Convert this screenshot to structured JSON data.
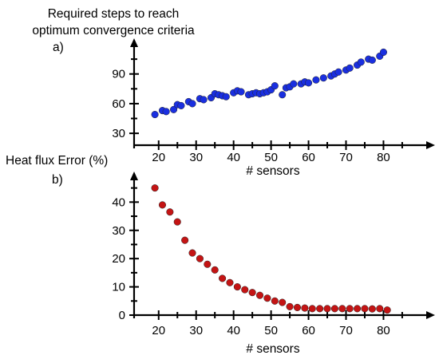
{
  "chart_data": [
    {
      "panel_label": "a)",
      "type": "scatter",
      "title_lines": [
        "Required steps to reach",
        "optimum convergence criteria"
      ],
      "xlabel": "# sensors",
      "ylabel": "",
      "xlim": [
        16,
        88
      ],
      "ylim": [
        18,
        118
      ],
      "xticks": [
        20,
        30,
        40,
        50,
        60,
        70,
        80
      ],
      "yticks": [
        30,
        60,
        90
      ],
      "marker_color": "#1a2fe0",
      "x": [
        19,
        21,
        22,
        24,
        25,
        26,
        28,
        29,
        31,
        32,
        34,
        35,
        36,
        37,
        38,
        40,
        41,
        42,
        44,
        45,
        46,
        47,
        48,
        49,
        50,
        51,
        53,
        54,
        55,
        56,
        58,
        59,
        60,
        62,
        64,
        66,
        67,
        68,
        70,
        71,
        73,
        74,
        76,
        77,
        79,
        80
      ],
      "y": [
        49,
        53,
        52,
        54,
        59,
        58,
        62,
        60,
        65,
        64,
        66,
        70,
        69,
        68,
        67,
        71,
        73,
        72,
        69,
        70,
        71,
        70,
        71,
        72,
        74,
        78,
        69,
        76,
        77,
        80,
        80,
        82,
        81,
        84,
        86,
        88,
        90,
        92,
        94,
        96,
        99,
        102,
        105,
        104,
        108,
        112
      ]
    },
    {
      "panel_label": "b)",
      "type": "scatter",
      "title_lines": [
        "Heat flux Error (%)"
      ],
      "xlabel": "# sensors",
      "ylabel": "",
      "xlim": [
        16,
        88
      ],
      "ylim": [
        0,
        48
      ],
      "xticks": [
        20,
        30,
        40,
        50,
        60,
        70,
        80
      ],
      "yticks": [
        0,
        10,
        20,
        30,
        40
      ],
      "marker_color": "#c41414",
      "x": [
        19,
        21,
        23,
        25,
        27,
        29,
        31,
        33,
        35,
        37,
        39,
        41,
        43,
        45,
        47,
        49,
        51,
        53,
        55,
        57,
        59,
        61,
        63,
        65,
        67,
        69,
        71,
        73,
        75,
        77,
        79,
        81
      ],
      "y": [
        45,
        39,
        36.5,
        33,
        26.5,
        22,
        20,
        18,
        16,
        13,
        11.5,
        10,
        9,
        8,
        7,
        6,
        5,
        4.5,
        3,
        2.7,
        2.5,
        2.3,
        2.3,
        2.3,
        2.3,
        2.3,
        2.3,
        2.3,
        2.3,
        2.2,
        2.3,
        1.8
      ]
    }
  ]
}
